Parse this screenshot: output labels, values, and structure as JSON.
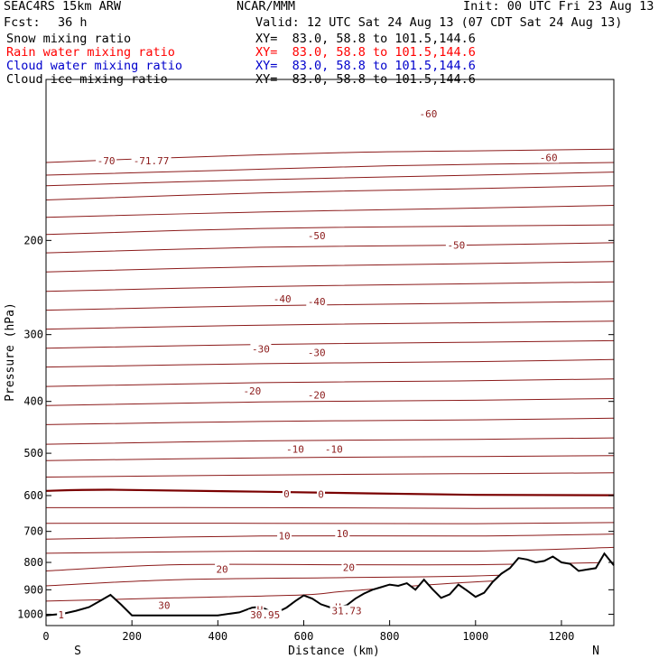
{
  "header": {
    "model": "SEAC4RS 15km ARW",
    "fcst_label": "Fcst:",
    "fcst_value": "36 h",
    "org": "NCAR/MMM",
    "init": "Init: 00 UTC Fri 23 Aug 13",
    "valid": "Valid: 12 UTC Sat 24 Aug 13 (07 CDT Sat 24 Aug 13)",
    "fields": [
      {
        "name": "Snow mixing ratio",
        "xy": "XY=  83.0, 58.8 to 101.5,144.6",
        "color": "#000000"
      },
      {
        "name": "Rain water mixing ratio",
        "xy": "XY=  83.0, 58.8 to 101.5,144.6",
        "color": "#ff0000"
      },
      {
        "name": "Cloud water mixing ratio",
        "xy": "XY=  83.0, 58.8 to 101.5,144.6",
        "color": "#0000cc"
      },
      {
        "name": "Cloud ice mixing ratio",
        "xy": "XY=  83.0, 58.8 to 101.5,144.6",
        "color": "#000000"
      }
    ]
  },
  "chart_data": {
    "type": "line",
    "description_free": true,
    "xlabel": "Distance (km)",
    "ylabel": "Pressure (hPa)",
    "xlim": [
      0,
      1322
    ],
    "ylim": [
      1050,
      100
    ],
    "y_scale": "log",
    "x_ticks": [
      0,
      200,
      400,
      600,
      800,
      1000,
      1200
    ],
    "y_ticks": [
      200,
      300,
      400,
      500,
      600,
      700,
      800,
      900,
      1000
    ],
    "direction_left": "S",
    "direction_right": "N",
    "colors": {
      "isotherm": "#8b1a1a",
      "zero_isotherm": "#7a0000",
      "terrain": "#000000"
    },
    "isotherm_labels": [
      {
        "text": "-70",
        "x": 140,
        "y": 142
      },
      {
        "text": "-71.77",
        "x": 245,
        "y": 142
      },
      {
        "text": "-60",
        "x": 890,
        "y": 116
      },
      {
        "text": "-60",
        "x": 1170,
        "y": 140
      },
      {
        "text": "-50",
        "x": 630,
        "y": 196
      },
      {
        "text": "-50",
        "x": 955,
        "y": 204
      },
      {
        "text": "-40",
        "x": 550,
        "y": 257
      },
      {
        "text": "-40",
        "x": 630,
        "y": 260
      },
      {
        "text": "-30",
        "x": 500,
        "y": 319
      },
      {
        "text": "-30",
        "x": 630,
        "y": 324
      },
      {
        "text": "-20",
        "x": 480,
        "y": 382
      },
      {
        "text": "-20",
        "x": 630,
        "y": 389
      },
      {
        "text": "-10",
        "x": 580,
        "y": 491
      },
      {
        "text": "-10",
        "x": 670,
        "y": 491
      },
      {
        "text": "0",
        "x": 560,
        "y": 595
      },
      {
        "text": "0",
        "x": 640,
        "y": 597
      },
      {
        "text": "10",
        "x": 555,
        "y": 713
      },
      {
        "text": "10",
        "x": 690,
        "y": 707
      },
      {
        "text": "20",
        "x": 410,
        "y": 823
      },
      {
        "text": "20",
        "x": 705,
        "y": 817
      },
      {
        "text": "30",
        "x": 275,
        "y": 962
      },
      {
        "text": "H",
        "x": 498,
        "y": 981
      },
      {
        "text": "30.95",
        "x": 510,
        "y": 1003
      },
      {
        "text": "H",
        "x": 680,
        "y": 969
      },
      {
        "text": "31.73",
        "x": 700,
        "y": 985
      },
      {
        "text": "1",
        "x": 35,
        "y": 1002
      }
    ],
    "isotherms": [
      {
        "value": -70,
        "points": [
          [
            0,
            143
          ],
          [
            300,
            140
          ],
          [
            700,
            137
          ],
          [
            1000,
            136
          ],
          [
            1322,
            135
          ]
        ]
      },
      {
        "value": -65,
        "points": [
          [
            0,
            151
          ],
          [
            400,
            148
          ],
          [
            800,
            145
          ],
          [
            1322,
            143
          ]
        ]
      },
      {
        "value": -60,
        "points": [
          [
            0,
            158
          ],
          [
            500,
            154
          ],
          [
            1000,
            151
          ],
          [
            1322,
            149
          ]
        ]
      },
      {
        "value": -57,
        "points": [
          [
            0,
            168
          ],
          [
            500,
            163
          ],
          [
            1000,
            160
          ],
          [
            1322,
            158
          ]
        ]
      },
      {
        "value": -53,
        "points": [
          [
            0,
            181
          ],
          [
            500,
            177
          ],
          [
            1000,
            174
          ],
          [
            1322,
            172
          ]
        ]
      },
      {
        "value": -50,
        "points": [
          [
            0,
            195
          ],
          [
            500,
            190
          ],
          [
            1000,
            188
          ],
          [
            1322,
            187
          ]
        ]
      },
      {
        "value": -47,
        "points": [
          [
            0,
            211
          ],
          [
            500,
            206
          ],
          [
            1000,
            204
          ],
          [
            1322,
            202
          ]
        ]
      },
      {
        "value": -43,
        "points": [
          [
            0,
            229
          ],
          [
            500,
            224
          ],
          [
            1000,
            221
          ],
          [
            1322,
            219
          ]
        ]
      },
      {
        "value": -40,
        "points": [
          [
            0,
            249
          ],
          [
            500,
            244
          ],
          [
            1000,
            241
          ],
          [
            1322,
            239
          ]
        ]
      },
      {
        "value": -35,
        "points": [
          [
            0,
            270
          ],
          [
            500,
            265
          ],
          [
            1000,
            262
          ],
          [
            1322,
            260
          ]
        ]
      },
      {
        "value": -30,
        "points": [
          [
            0,
            293
          ],
          [
            500,
            288
          ],
          [
            1000,
            285
          ],
          [
            1322,
            283
          ]
        ]
      },
      {
        "value": -27,
        "points": [
          [
            0,
            318
          ],
          [
            500,
            313
          ],
          [
            1000,
            310
          ],
          [
            1322,
            308
          ]
        ]
      },
      {
        "value": -23,
        "points": [
          [
            0,
            345
          ],
          [
            500,
            340
          ],
          [
            1000,
            337
          ],
          [
            1322,
            334
          ]
        ]
      },
      {
        "value": -20,
        "points": [
          [
            0,
            375
          ],
          [
            500,
            369
          ],
          [
            1000,
            366
          ],
          [
            1322,
            363
          ]
        ]
      },
      {
        "value": -17,
        "points": [
          [
            0,
            407
          ],
          [
            500,
            401
          ],
          [
            1000,
            398
          ],
          [
            1322,
            395
          ]
        ]
      },
      {
        "value": -13,
        "points": [
          [
            0,
            442
          ],
          [
            500,
            436
          ],
          [
            1000,
            433
          ],
          [
            1322,
            430
          ]
        ]
      },
      {
        "value": -10,
        "points": [
          [
            0,
            481
          ],
          [
            500,
            474
          ],
          [
            1000,
            471
          ],
          [
            1322,
            468
          ]
        ]
      },
      {
        "value": -7,
        "points": [
          [
            0,
            516
          ],
          [
            500,
            510
          ],
          [
            1000,
            507
          ],
          [
            1322,
            505
          ]
        ]
      },
      {
        "value": -3,
        "points": [
          [
            0,
            554
          ],
          [
            500,
            549
          ],
          [
            1000,
            546
          ],
          [
            1322,
            544
          ]
        ]
      },
      {
        "value": 0,
        "points": [
          [
            0,
            588
          ],
          [
            150,
            585
          ],
          [
            500,
            590
          ],
          [
            1000,
            598
          ],
          [
            1322,
            599
          ]
        ]
      },
      {
        "value": 3,
        "points": [
          [
            0,
            632
          ],
          [
            500,
            632
          ],
          [
            1000,
            634
          ],
          [
            1322,
            633
          ]
        ]
      },
      {
        "value": 7,
        "points": [
          [
            0,
            676
          ],
          [
            500,
            676
          ],
          [
            1000,
            677
          ],
          [
            1322,
            674
          ]
        ]
      },
      {
        "value": 10,
        "points": [
          [
            0,
            724
          ],
          [
            500,
            714
          ],
          [
            1000,
            714
          ],
          [
            1322,
            708
          ]
        ]
      },
      {
        "value": 13,
        "points": [
          [
            0,
            769
          ],
          [
            500,
            762
          ],
          [
            1000,
            762
          ],
          [
            1322,
            750
          ]
        ]
      },
      {
        "value": 17,
        "points": [
          [
            0,
            830
          ],
          [
            300,
            808
          ],
          [
            700,
            808
          ],
          [
            1000,
            808
          ],
          [
            1322,
            800
          ]
        ]
      },
      {
        "value": 20,
        "points": [
          [
            0,
            885
          ],
          [
            300,
            862
          ],
          [
            700,
            854
          ],
          [
            1000,
            848
          ],
          [
            1322,
            830
          ]
        ]
      },
      {
        "value": 23,
        "points": [
          [
            0,
            945
          ],
          [
            300,
            932
          ],
          [
            600,
            920
          ],
          [
            700,
            905
          ],
          [
            1000,
            870
          ],
          [
            1322,
            850
          ]
        ]
      }
    ],
    "terrain": [
      [
        0,
        1005
      ],
      [
        40,
        998
      ],
      [
        70,
        985
      ],
      [
        100,
        970
      ],
      [
        125,
        945
      ],
      [
        150,
        920
      ],
      [
        175,
        960
      ],
      [
        200,
        1005
      ],
      [
        300,
        1005
      ],
      [
        400,
        1005
      ],
      [
        450,
        992
      ],
      [
        480,
        972
      ],
      [
        500,
        968
      ],
      [
        520,
        986
      ],
      [
        540,
        990
      ],
      [
        560,
        972
      ],
      [
        580,
        945
      ],
      [
        600,
        922
      ],
      [
        620,
        935
      ],
      [
        640,
        958
      ],
      [
        660,
        970
      ],
      [
        680,
        972
      ],
      [
        700,
        962
      ],
      [
        720,
        935
      ],
      [
        740,
        915
      ],
      [
        760,
        900
      ],
      [
        780,
        890
      ],
      [
        800,
        880
      ],
      [
        820,
        885
      ],
      [
        840,
        875
      ],
      [
        860,
        900
      ],
      [
        880,
        862
      ],
      [
        900,
        898
      ],
      [
        920,
        932
      ],
      [
        940,
        918
      ],
      [
        960,
        880
      ],
      [
        980,
        903
      ],
      [
        1000,
        928
      ],
      [
        1020,
        912
      ],
      [
        1040,
        870
      ],
      [
        1060,
        840
      ],
      [
        1080,
        820
      ],
      [
        1100,
        785
      ],
      [
        1120,
        790
      ],
      [
        1140,
        800
      ],
      [
        1160,
        795
      ],
      [
        1180,
        780
      ],
      [
        1200,
        800
      ],
      [
        1220,
        805
      ],
      [
        1240,
        830
      ],
      [
        1260,
        825
      ],
      [
        1280,
        820
      ],
      [
        1300,
        770
      ],
      [
        1322,
        810
      ]
    ]
  }
}
